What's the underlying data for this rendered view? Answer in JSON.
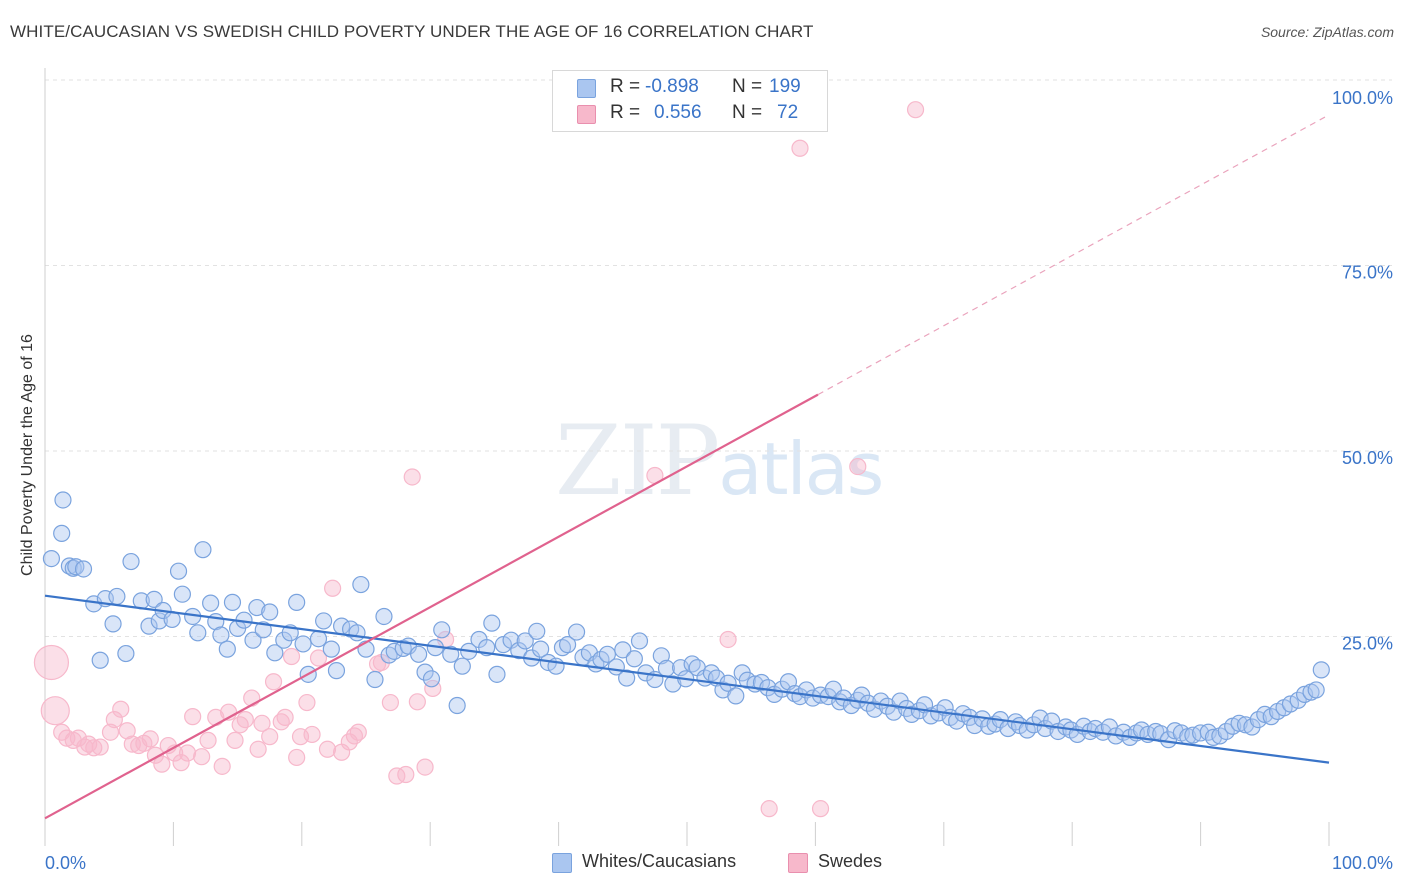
{
  "header": {
    "title": "WHITE/CAUCASIAN VS SWEDISH CHILD POVERTY UNDER THE AGE OF 16 CORRELATION CHART",
    "source": "Source: ZipAtlas.com"
  },
  "watermark": {
    "zip": "ZIP",
    "atlas": "atlas"
  },
  "legend": {
    "rows": [
      {
        "r_label": "R =",
        "r_value": "-0.898",
        "n_label": "N =",
        "n_value": "199",
        "color": "#aac6f0"
      },
      {
        "r_label": "R =",
        "r_value": "0.556",
        "n_label": "N =",
        "n_value": "72",
        "color": "#f7b8cb"
      }
    ]
  },
  "bottom_legend": {
    "items": [
      {
        "label": "Whites/Caucasians",
        "color": "#aac6f0"
      },
      {
        "label": "Swedes",
        "color": "#f7b8cb"
      }
    ]
  },
  "chart_data": {
    "type": "scatter",
    "title": "WHITE/CAUCASIAN VS SWEDISH CHILD POVERTY UNDER THE AGE OF 16 CORRELATION CHART",
    "xlabel": "",
    "ylabel": "Child Poverty Under the Age of 16",
    "xlim": [
      0,
      100
    ],
    "ylim": [
      0,
      100
    ],
    "x_tick_labels": [
      "0.0%",
      "100.0%"
    ],
    "y_tick_labels": [
      "25.0%",
      "50.0%",
      "75.0%",
      "100.0%"
    ],
    "y_ticks": [
      25,
      50,
      75,
      100
    ],
    "grid": true,
    "legend_position": "top-center",
    "colors": {
      "blue": "#3a74c8",
      "blue_fill": "#aac6f0",
      "pink": "#e0628e",
      "pink_fill": "#f7b8cb"
    },
    "series": [
      {
        "name": "Whites/Caucasians",
        "r": -0.898,
        "n": 199,
        "trend": {
          "x": [
            0,
            100
          ],
          "y": [
            30.5,
            8.0
          ],
          "style": "solid"
        },
        "points": [
          [
            0.5,
            35.5
          ],
          [
            1.3,
            38.9
          ],
          [
            1.4,
            43.4
          ],
          [
            1.9,
            34.5
          ],
          [
            2.2,
            34.2
          ],
          [
            2.4,
            34.4
          ],
          [
            3.0,
            34.1
          ],
          [
            3.8,
            29.4
          ],
          [
            4.3,
            21.8
          ],
          [
            4.7,
            30.1
          ],
          [
            5.3,
            26.7
          ],
          [
            5.6,
            30.4
          ],
          [
            6.3,
            22.7
          ],
          [
            6.7,
            35.1
          ],
          [
            7.5,
            29.8
          ],
          [
            8.1,
            26.4
          ],
          [
            8.5,
            30.0
          ],
          [
            8.9,
            27.1
          ],
          [
            9.2,
            28.5
          ],
          [
            9.9,
            27.3
          ],
          [
            10.4,
            33.8
          ],
          [
            10.7,
            30.7
          ],
          [
            11.5,
            27.7
          ],
          [
            11.9,
            25.5
          ],
          [
            12.3,
            36.7
          ],
          [
            12.9,
            29.5
          ],
          [
            13.3,
            27.0
          ],
          [
            13.7,
            25.2
          ],
          [
            14.2,
            23.3
          ],
          [
            14.6,
            29.6
          ],
          [
            15.0,
            26.1
          ],
          [
            15.5,
            27.2
          ],
          [
            16.2,
            24.5
          ],
          [
            16.5,
            28.9
          ],
          [
            17.0,
            25.9
          ],
          [
            17.5,
            28.3
          ],
          [
            17.9,
            22.8
          ],
          [
            18.6,
            24.5
          ],
          [
            19.1,
            25.5
          ],
          [
            19.6,
            29.6
          ],
          [
            20.1,
            24.0
          ],
          [
            20.5,
            19.9
          ],
          [
            21.3,
            24.7
          ],
          [
            21.7,
            27.1
          ],
          [
            22.3,
            23.3
          ],
          [
            22.7,
            20.4
          ],
          [
            23.1,
            26.4
          ],
          [
            23.8,
            26.0
          ],
          [
            24.3,
            25.5
          ],
          [
            24.6,
            32.0
          ],
          [
            25.0,
            23.3
          ],
          [
            25.7,
            19.2
          ],
          [
            26.4,
            27.7
          ],
          [
            26.8,
            22.5
          ],
          [
            27.2,
            23.0
          ],
          [
            27.9,
            23.4
          ],
          [
            28.3,
            23.7
          ],
          [
            29.1,
            22.6
          ],
          [
            29.6,
            20.2
          ],
          [
            30.1,
            19.3
          ],
          [
            30.4,
            23.5
          ],
          [
            30.9,
            25.9
          ],
          [
            31.6,
            22.6
          ],
          [
            32.1,
            15.7
          ],
          [
            32.5,
            21.0
          ],
          [
            33.0,
            23.0
          ],
          [
            33.8,
            24.6
          ],
          [
            34.4,
            23.5
          ],
          [
            34.8,
            26.8
          ],
          [
            35.2,
            19.9
          ],
          [
            35.7,
            23.9
          ],
          [
            36.3,
            24.5
          ],
          [
            36.9,
            23.1
          ],
          [
            37.4,
            24.4
          ],
          [
            37.9,
            22.1
          ],
          [
            38.3,
            25.7
          ],
          [
            38.6,
            23.3
          ],
          [
            39.2,
            21.5
          ],
          [
            39.8,
            21.0
          ],
          [
            40.3,
            23.5
          ],
          [
            40.7,
            23.9
          ],
          [
            41.4,
            25.6
          ],
          [
            41.9,
            22.2
          ],
          [
            42.4,
            22.8
          ],
          [
            42.9,
            21.3
          ],
          [
            43.3,
            21.9
          ],
          [
            43.8,
            22.6
          ],
          [
            44.5,
            20.9
          ],
          [
            45.0,
            23.2
          ],
          [
            45.3,
            19.4
          ],
          [
            45.9,
            22.0
          ],
          [
            46.3,
            24.4
          ],
          [
            46.8,
            20.1
          ],
          [
            47.5,
            19.2
          ],
          [
            48.0,
            22.4
          ],
          [
            48.4,
            20.7
          ],
          [
            48.9,
            18.6
          ],
          [
            49.5,
            20.8
          ],
          [
            49.9,
            19.3
          ],
          [
            50.4,
            21.3
          ],
          [
            50.8,
            20.8
          ],
          [
            51.4,
            19.4
          ],
          [
            51.9,
            20.1
          ],
          [
            52.3,
            19.4
          ],
          [
            52.8,
            17.8
          ],
          [
            53.2,
            18.7
          ],
          [
            53.8,
            17.0
          ],
          [
            54.3,
            20.1
          ],
          [
            54.7,
            19.1
          ],
          [
            55.3,
            18.6
          ],
          [
            55.8,
            18.8
          ],
          [
            56.3,
            18.1
          ],
          [
            56.8,
            17.2
          ],
          [
            57.4,
            17.9
          ],
          [
            57.9,
            18.9
          ],
          [
            58.4,
            17.3
          ],
          [
            58.8,
            16.9
          ],
          [
            59.3,
            17.8
          ],
          [
            59.8,
            16.7
          ],
          [
            60.4,
            17.1
          ],
          [
            61.0,
            16.9
          ],
          [
            61.4,
            17.9
          ],
          [
            61.9,
            16.2
          ],
          [
            62.2,
            16.7
          ],
          [
            62.8,
            15.7
          ],
          [
            63.3,
            16.4
          ],
          [
            63.6,
            17.1
          ],
          [
            64.1,
            16.0
          ],
          [
            64.6,
            15.2
          ],
          [
            65.1,
            16.3
          ],
          [
            65.6,
            15.6
          ],
          [
            66.1,
            14.8
          ],
          [
            66.6,
            16.3
          ],
          [
            67.1,
            15.3
          ],
          [
            67.5,
            14.5
          ],
          [
            68.1,
            15.0
          ],
          [
            68.5,
            15.8
          ],
          [
            69.0,
            14.3
          ],
          [
            69.6,
            14.7
          ],
          [
            70.1,
            15.4
          ],
          [
            70.5,
            14.1
          ],
          [
            71.0,
            13.6
          ],
          [
            71.5,
            14.6
          ],
          [
            72.0,
            14.1
          ],
          [
            72.4,
            13.0
          ],
          [
            73.0,
            13.9
          ],
          [
            73.5,
            12.9
          ],
          [
            74.0,
            13.2
          ],
          [
            74.4,
            13.8
          ],
          [
            75.0,
            12.6
          ],
          [
            75.6,
            13.5
          ],
          [
            75.9,
            13.0
          ],
          [
            76.5,
            12.4
          ],
          [
            77.0,
            13.1
          ],
          [
            77.5,
            14.0
          ],
          [
            77.9,
            12.6
          ],
          [
            78.4,
            13.6
          ],
          [
            78.9,
            12.2
          ],
          [
            79.5,
            12.8
          ],
          [
            79.9,
            12.4
          ],
          [
            80.4,
            11.8
          ],
          [
            80.9,
            12.9
          ],
          [
            81.4,
            12.2
          ],
          [
            81.8,
            12.6
          ],
          [
            82.4,
            12.1
          ],
          [
            82.9,
            12.8
          ],
          [
            83.4,
            11.6
          ],
          [
            84.0,
            12.1
          ],
          [
            84.5,
            11.4
          ],
          [
            85.0,
            12.0
          ],
          [
            85.4,
            12.4
          ],
          [
            85.9,
            11.8
          ],
          [
            86.5,
            12.2
          ],
          [
            86.9,
            11.9
          ],
          [
            87.5,
            11.1
          ],
          [
            88.0,
            12.3
          ],
          [
            88.5,
            12.0
          ],
          [
            89.0,
            11.5
          ],
          [
            89.4,
            11.7
          ],
          [
            90.0,
            12.0
          ],
          [
            90.6,
            12.1
          ],
          [
            91.0,
            11.4
          ],
          [
            91.5,
            11.6
          ],
          [
            92.0,
            12.2
          ],
          [
            92.5,
            12.9
          ],
          [
            93.0,
            13.3
          ],
          [
            93.5,
            13.1
          ],
          [
            94.0,
            12.8
          ],
          [
            94.5,
            13.8
          ],
          [
            95.0,
            14.5
          ],
          [
            95.5,
            14.2
          ],
          [
            96.0,
            14.9
          ],
          [
            96.5,
            15.4
          ],
          [
            97.0,
            15.9
          ],
          [
            97.6,
            16.4
          ],
          [
            98.1,
            17.2
          ],
          [
            98.6,
            17.5
          ],
          [
            99.0,
            17.8
          ],
          [
            99.4,
            20.5
          ]
        ]
      },
      {
        "name": "Swedes",
        "r": 0.556,
        "n": 72,
        "trend": {
          "x": [
            0,
            60.2
          ],
          "y": [
            0.5,
            57.6
          ],
          "extension": {
            "x": [
              60.2,
              100
            ],
            "y": [
              57.6,
              95.3
            ]
          }
        },
        "points": [
          [
            0.5,
            21.5
          ],
          [
            0.8,
            15.0
          ],
          [
            1.3,
            12.1
          ],
          [
            1.7,
            11.3
          ],
          [
            2.2,
            11.0
          ],
          [
            2.6,
            11.3
          ],
          [
            3.1,
            10.1
          ],
          [
            3.4,
            10.5
          ],
          [
            3.8,
            10.0
          ],
          [
            4.3,
            10.1
          ],
          [
            5.1,
            12.1
          ],
          [
            5.4,
            13.8
          ],
          [
            5.9,
            15.2
          ],
          [
            6.4,
            12.3
          ],
          [
            6.8,
            10.5
          ],
          [
            7.3,
            10.3
          ],
          [
            7.7,
            10.6
          ],
          [
            8.2,
            11.2
          ],
          [
            8.6,
            9.0
          ],
          [
            9.1,
            7.8
          ],
          [
            9.6,
            10.3
          ],
          [
            10.1,
            9.3
          ],
          [
            10.6,
            8.0
          ],
          [
            11.1,
            9.3
          ],
          [
            11.5,
            14.2
          ],
          [
            12.2,
            8.8
          ],
          [
            12.7,
            11.0
          ],
          [
            13.3,
            14.1
          ],
          [
            13.8,
            7.5
          ],
          [
            14.3,
            14.8
          ],
          [
            14.8,
            11.0
          ],
          [
            15.2,
            13.1
          ],
          [
            15.6,
            13.8
          ],
          [
            16.1,
            16.7
          ],
          [
            16.6,
            9.8
          ],
          [
            16.9,
            13.3
          ],
          [
            17.5,
            11.5
          ],
          [
            17.8,
            18.9
          ],
          [
            18.4,
            13.5
          ],
          [
            18.7,
            14.1
          ],
          [
            19.2,
            22.3
          ],
          [
            19.6,
            8.7
          ],
          [
            19.9,
            11.5
          ],
          [
            20.4,
            16.1
          ],
          [
            20.8,
            11.8
          ],
          [
            21.3,
            22.1
          ],
          [
            22.0,
            9.8
          ],
          [
            22.4,
            31.5
          ],
          [
            23.1,
            9.4
          ],
          [
            23.7,
            10.8
          ],
          [
            24.1,
            11.6
          ],
          [
            24.4,
            12.1
          ],
          [
            25.9,
            21.3
          ],
          [
            26.2,
            21.5
          ],
          [
            26.9,
            16.1
          ],
          [
            27.4,
            6.2
          ],
          [
            28.1,
            6.4
          ],
          [
            28.6,
            46.5
          ],
          [
            29.0,
            16.2
          ],
          [
            29.6,
            7.4
          ],
          [
            30.2,
            18.0
          ],
          [
            31.2,
            24.6
          ],
          [
            40.5,
            99.5
          ],
          [
            43.1,
            100
          ],
          [
            47.5,
            46.7
          ],
          [
            53.2,
            24.6
          ],
          [
            56.4,
            1.8
          ],
          [
            56.9,
            100
          ],
          [
            58.8,
            90.8
          ],
          [
            60.4,
            1.8
          ],
          [
            63.3,
            47.9
          ],
          [
            67.8,
            96.0
          ]
        ]
      }
    ]
  }
}
